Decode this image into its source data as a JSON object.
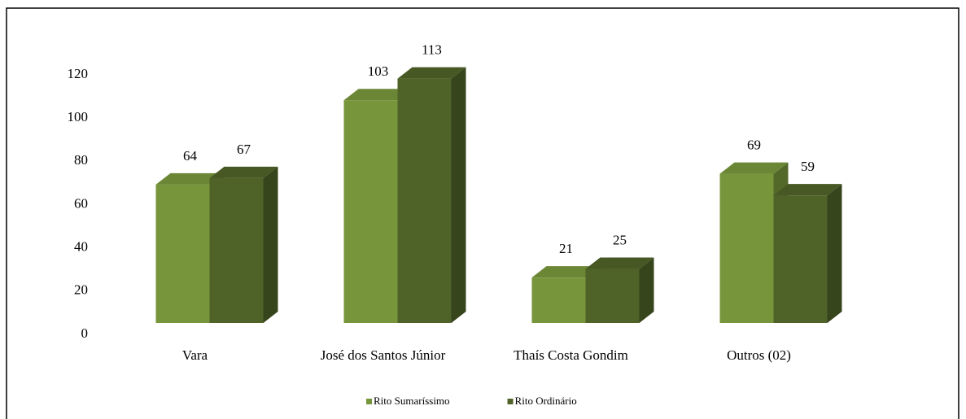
{
  "chart_data": {
    "type": "bar3d",
    "categories": [
      "Vara",
      "José dos Santos Júnior",
      "Thaís Costa Gondim",
      "Outros (02)"
    ],
    "series": [
      {
        "name": "Rito Sumaríssimo",
        "color": "#77963b",
        "values": [
          64,
          103,
          21,
          69
        ]
      },
      {
        "name": "Rito Ordinário",
        "color": "#4f6228",
        "values": [
          67,
          113,
          25,
          59
        ]
      }
    ],
    "ylim": [
      0,
      120
    ],
    "yticks": [
      0,
      20,
      40,
      60,
      80,
      100,
      120
    ],
    "legend": "bottom"
  }
}
